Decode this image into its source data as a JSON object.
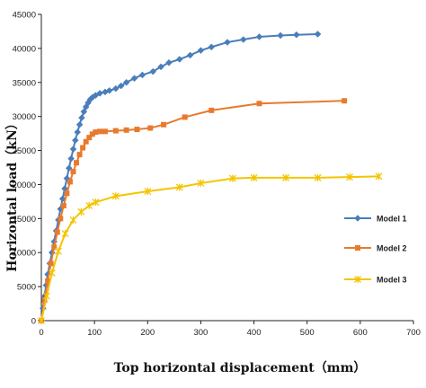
{
  "chart_data": {
    "type": "line",
    "title": "",
    "xlabel": "Top horizontal displacement（mm）",
    "ylabel": "Horizontal load（kN）",
    "xlim": [
      0,
      700
    ],
    "ylim": [
      0,
      45000
    ],
    "xticks": [
      0,
      100,
      200,
      300,
      400,
      500,
      600,
      700
    ],
    "yticks": [
      0,
      5000,
      10000,
      15000,
      20000,
      25000,
      30000,
      35000,
      40000,
      45000
    ],
    "grid": false,
    "legend_position": "right",
    "series": [
      {
        "name": "Model 1",
        "color": "#4a7ebb",
        "marker": "diamond",
        "points": [
          [
            0,
            0
          ],
          [
            3,
            1800
          ],
          [
            6,
            3600
          ],
          [
            9,
            5200
          ],
          [
            12,
            6800
          ],
          [
            16,
            8400
          ],
          [
            20,
            10000
          ],
          [
            24,
            11600
          ],
          [
            28,
            13200
          ],
          [
            32,
            14800
          ],
          [
            36,
            16400
          ],
          [
            40,
            17900
          ],
          [
            44,
            19400
          ],
          [
            48,
            20900
          ],
          [
            52,
            22400
          ],
          [
            56,
            23800
          ],
          [
            60,
            25200
          ],
          [
            64,
            26500
          ],
          [
            68,
            27700
          ],
          [
            72,
            28800
          ],
          [
            76,
            29800
          ],
          [
            80,
            30700
          ],
          [
            84,
            31400
          ],
          [
            88,
            32000
          ],
          [
            92,
            32500
          ],
          [
            96,
            32800
          ],
          [
            102,
            33100
          ],
          [
            110,
            33400
          ],
          [
            120,
            33600
          ],
          [
            128,
            33800
          ],
          [
            140,
            34100
          ],
          [
            150,
            34500
          ],
          [
            160,
            35000
          ],
          [
            175,
            35600
          ],
          [
            190,
            36100
          ],
          [
            210,
            36600
          ],
          [
            225,
            37300
          ],
          [
            240,
            37900
          ],
          [
            260,
            38400
          ],
          [
            280,
            39000
          ],
          [
            300,
            39700
          ],
          [
            320,
            40200
          ],
          [
            350,
            40900
          ],
          [
            380,
            41300
          ],
          [
            410,
            41700
          ],
          [
            450,
            41900
          ],
          [
            480,
            42000
          ],
          [
            520,
            42100
          ]
        ]
      },
      {
        "name": "Model 2",
        "color": "#e87a2e",
        "marker": "square",
        "points": [
          [
            0,
            0
          ],
          [
            6,
            3000
          ],
          [
            12,
            5800
          ],
          [
            18,
            8400
          ],
          [
            24,
            10800
          ],
          [
            30,
            13000
          ],
          [
            36,
            15000
          ],
          [
            42,
            16900
          ],
          [
            48,
            18700
          ],
          [
            54,
            20400
          ],
          [
            60,
            21900
          ],
          [
            66,
            23200
          ],
          [
            72,
            24400
          ],
          [
            78,
            25400
          ],
          [
            84,
            26300
          ],
          [
            90,
            26900
          ],
          [
            96,
            27400
          ],
          [
            102,
            27700
          ],
          [
            110,
            27800
          ],
          [
            120,
            27800
          ],
          [
            140,
            27900
          ],
          [
            160,
            28000
          ],
          [
            180,
            28100
          ],
          [
            205,
            28300
          ],
          [
            230,
            28800
          ],
          [
            270,
            29900
          ],
          [
            320,
            30900
          ],
          [
            410,
            31900
          ],
          [
            570,
            32300
          ]
        ]
      },
      {
        "name": "Model 3",
        "color": "#f5c400",
        "marker": "x",
        "points": [
          [
            0,
            0
          ],
          [
            10,
            3600
          ],
          [
            20,
            7000
          ],
          [
            32,
            10200
          ],
          [
            45,
            12800
          ],
          [
            60,
            14800
          ],
          [
            75,
            16000
          ],
          [
            90,
            16900
          ],
          [
            102,
            17400
          ],
          [
            140,
            18300
          ],
          [
            200,
            19000
          ],
          [
            260,
            19600
          ],
          [
            300,
            20200
          ],
          [
            360,
            20900
          ],
          [
            400,
            21000
          ],
          [
            460,
            21000
          ],
          [
            520,
            21000
          ],
          [
            580,
            21100
          ],
          [
            635,
            21200
          ]
        ]
      }
    ]
  }
}
